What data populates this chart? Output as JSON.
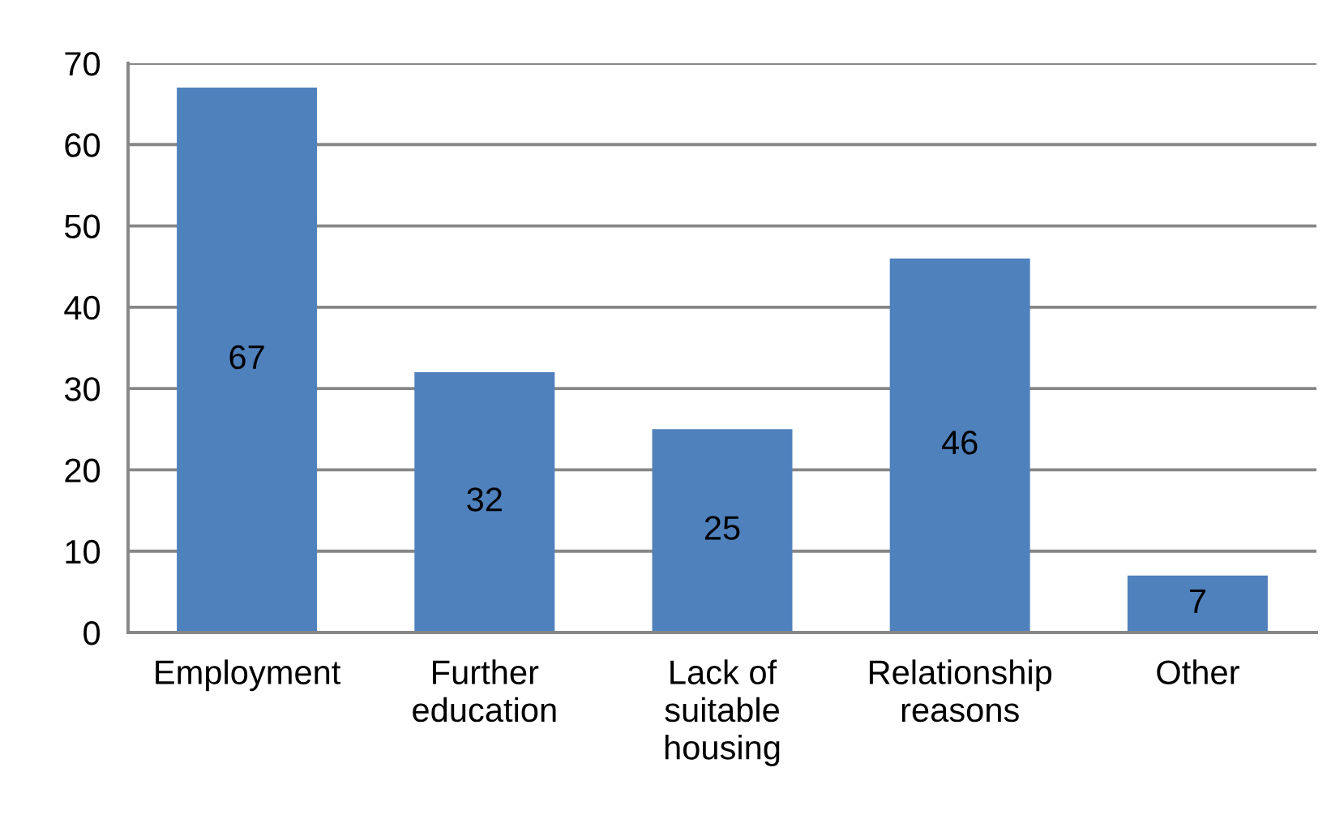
{
  "chart_data": {
    "type": "bar",
    "categories": [
      "Employment",
      "Further education",
      "Lack of suitable housing",
      "Relationship reasons",
      "Other"
    ],
    "values": [
      67,
      32,
      25,
      46,
      7
    ],
    "color": "#4f81bd",
    "ylim": [
      0,
      70
    ],
    "yticks": [
      0,
      10,
      20,
      30,
      40,
      50,
      60,
      70
    ],
    "grid": "y",
    "data_labels": true
  }
}
